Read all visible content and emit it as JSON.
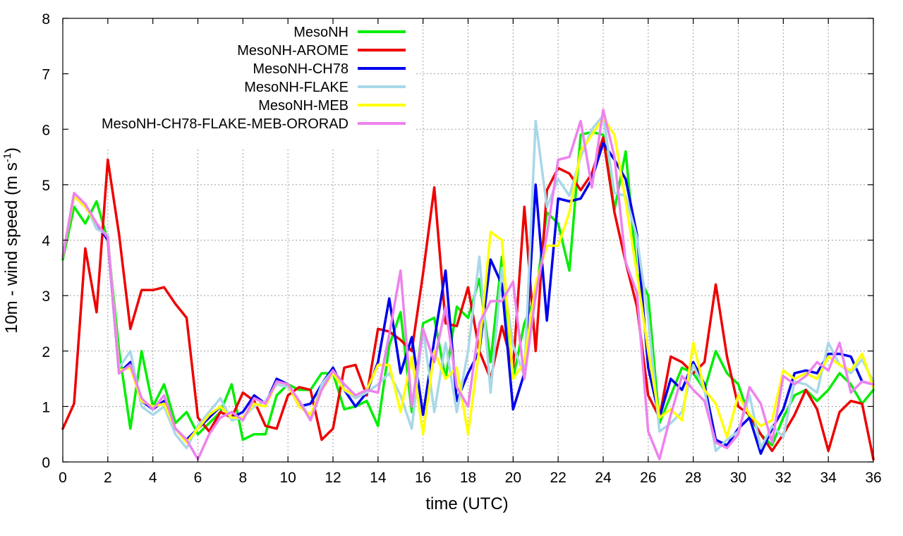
{
  "chart_data": {
    "type": "line",
    "title": "",
    "xlabel": "time (UTC)",
    "ylabel": "10m - wind speed  (m s-1)",
    "ylabel_parts": {
      "main": "10m - wind speed  (m s",
      "superscript": "-1",
      "suffix": ")"
    },
    "xlim": [
      0,
      36
    ],
    "ylim": [
      0,
      8
    ],
    "xticks": [
      0,
      2,
      4,
      6,
      8,
      10,
      12,
      14,
      16,
      18,
      20,
      22,
      24,
      26,
      28,
      30,
      32,
      34,
      36
    ],
    "yticks": [
      0,
      1,
      2,
      3,
      4,
      5,
      6,
      7,
      8
    ],
    "grid": true,
    "legend_position": "top-left",
    "x": [
      0,
      0.5,
      1,
      1.5,
      2,
      2.5,
      3,
      3.5,
      4,
      4.5,
      5,
      5.5,
      6,
      6.5,
      7,
      7.5,
      8,
      8.5,
      9,
      9.5,
      10,
      10.5,
      11,
      11.5,
      12,
      12.5,
      13,
      13.5,
      14,
      14.5,
      15,
      15.5,
      16,
      16.5,
      17,
      17.5,
      18,
      18.5,
      19,
      19.5,
      20,
      20.5,
      21,
      21.5,
      22,
      22.5,
      23,
      23.5,
      24,
      24.5,
      25,
      25.5,
      26,
      26.5,
      27,
      27.5,
      28,
      28.5,
      29,
      29.5,
      30,
      30.5,
      31,
      31.5,
      32,
      32.5,
      33,
      33.5,
      34,
      34.5,
      35,
      35.5,
      36
    ],
    "series": [
      {
        "name": "MesoNH",
        "color": "#00ee00",
        "values": [
          3.65,
          4.6,
          4.3,
          4.7,
          4.0,
          2.0,
          0.6,
          2.0,
          1.0,
          1.4,
          0.7,
          0.9,
          0.5,
          0.7,
          0.9,
          1.4,
          0.4,
          0.5,
          0.5,
          1.2,
          1.4,
          1.3,
          1.3,
          1.6,
          1.6,
          0.95,
          1.0,
          1.1,
          0.65,
          2.1,
          2.7,
          0.9,
          2.5,
          2.6,
          1.5,
          2.8,
          2.6,
          3.3,
          1.8,
          3.7,
          1.5,
          2.5,
          3.0,
          4.5,
          4.3,
          3.45,
          5.9,
          5.95,
          5.9,
          4.55,
          5.6,
          3.4,
          3.0,
          0.7,
          1.2,
          1.7,
          1.6,
          1.3,
          2.0,
          1.6,
          1.4,
          0.8,
          0.5,
          0.3,
          0.8,
          1.2,
          1.3,
          1.1,
          1.3,
          1.6,
          1.4,
          1.05,
          1.3
        ]
      },
      {
        "name": "MesoNH-AROME",
        "color": "#ee0000",
        "values": [
          0.6,
          1.05,
          3.85,
          2.7,
          5.45,
          4.1,
          2.4,
          3.1,
          3.1,
          3.15,
          2.85,
          2.6,
          0.8,
          0.55,
          0.9,
          0.8,
          1.25,
          1.1,
          0.65,
          0.6,
          1.2,
          1.35,
          1.3,
          0.4,
          0.6,
          1.7,
          1.75,
          1.2,
          2.4,
          2.35,
          2.2,
          2.0,
          3.4,
          4.95,
          2.5,
          2.45,
          3.15,
          2.0,
          1.5,
          2.45,
          1.7,
          4.6,
          2.0,
          4.9,
          5.3,
          5.2,
          4.9,
          5.2,
          5.85,
          4.5,
          3.6,
          2.8,
          1.2,
          0.8,
          1.9,
          1.8,
          1.6,
          1.8,
          3.2,
          1.9,
          1.0,
          0.85,
          0.5,
          0.2,
          0.5,
          0.85,
          1.3,
          0.95,
          0.2,
          0.9,
          1.1,
          1.05,
          0.05
        ]
      },
      {
        "name": "MesoNH-CH78",
        "color": "#0000ee",
        "values": [
          3.7,
          4.8,
          4.6,
          4.3,
          4.0,
          1.6,
          1.8,
          1.1,
          0.95,
          1.1,
          0.6,
          0.4,
          0.6,
          0.8,
          1.0,
          0.8,
          0.9,
          1.2,
          1.05,
          1.5,
          1.4,
          1.0,
          1.05,
          1.4,
          1.7,
          1.3,
          1.0,
          1.25,
          1.8,
          2.95,
          1.6,
          2.25,
          0.85,
          2.2,
          3.45,
          1.1,
          1.6,
          2.0,
          3.65,
          3.2,
          0.95,
          1.6,
          5.0,
          2.55,
          4.75,
          4.7,
          4.75,
          5.1,
          5.75,
          5.45,
          5.1,
          4.1,
          1.7,
          0.8,
          1.5,
          1.3,
          1.8,
          1.4,
          0.4,
          0.3,
          0.6,
          0.8,
          0.15,
          0.6,
          0.95,
          1.6,
          1.65,
          1.6,
          1.95,
          1.95,
          1.9,
          1.45,
          1.4
        ]
      },
      {
        "name": "MesoNH-FLAKE",
        "color": "#a8d8e8",
        "values": [
          3.7,
          4.8,
          4.65,
          4.2,
          4.1,
          1.7,
          2.0,
          1.0,
          0.85,
          1.0,
          0.5,
          0.25,
          0.65,
          0.9,
          1.15,
          0.75,
          0.8,
          1.0,
          1.1,
          1.4,
          1.35,
          1.1,
          0.8,
          1.4,
          1.65,
          1.3,
          1.15,
          1.25,
          1.4,
          1.6,
          1.2,
          0.6,
          2.4,
          0.9,
          2.15,
          0.9,
          2.0,
          3.7,
          1.25,
          3.5,
          2.1,
          1.55,
          6.15,
          4.6,
          5.1,
          4.8,
          5.5,
          6.0,
          6.25,
          4.85,
          4.8,
          4.05,
          2.6,
          0.55,
          0.7,
          0.9,
          1.75,
          1.3,
          0.2,
          0.4,
          0.55,
          1.2,
          0.25,
          0.65,
          0.45,
          1.45,
          1.4,
          1.25,
          2.15,
          1.75,
          1.6,
          1.85,
          1.45
        ]
      },
      {
        "name": "MesoNH-MEB",
        "color": "#ffff00",
        "values": [
          3.7,
          4.8,
          4.6,
          4.3,
          4.05,
          1.65,
          1.7,
          1.1,
          1.0,
          1.05,
          0.6,
          0.35,
          0.6,
          0.85,
          1.0,
          0.8,
          0.8,
          1.05,
          1.0,
          1.45,
          1.4,
          1.0,
          0.85,
          1.3,
          1.6,
          1.3,
          1.2,
          1.3,
          1.75,
          1.75,
          0.9,
          1.9,
          0.5,
          2.0,
          1.5,
          1.7,
          0.5,
          2.05,
          4.15,
          4.0,
          1.5,
          1.8,
          3.2,
          3.9,
          3.9,
          4.5,
          5.6,
          5.9,
          6.2,
          5.9,
          4.7,
          3.4,
          2.0,
          0.8,
          0.95,
          0.75,
          2.15,
          1.3,
          1.05,
          0.45,
          1.2,
          0.85,
          0.65,
          0.75,
          1.65,
          1.5,
          1.6,
          1.5,
          1.9,
          1.75,
          1.65,
          1.95,
          1.35
        ]
      },
      {
        "name": "MesoNH-CH78-FLAKE-MEB-ORORAD",
        "color": "#ee82ee",
        "values": [
          3.7,
          4.85,
          4.65,
          4.3,
          4.05,
          1.6,
          1.75,
          1.15,
          0.95,
          1.2,
          0.6,
          0.4,
          0.05,
          0.5,
          0.8,
          0.9,
          0.75,
          1.15,
          1.05,
          1.45,
          1.4,
          1.1,
          0.75,
          1.3,
          1.65,
          1.4,
          1.2,
          1.3,
          1.25,
          2.3,
          3.45,
          1.0,
          2.4,
          1.8,
          2.8,
          1.35,
          1.0,
          2.5,
          2.9,
          2.9,
          3.25,
          1.5,
          3.0,
          4.1,
          5.45,
          5.5,
          6.15,
          4.95,
          6.35,
          5.5,
          3.6,
          3.05,
          0.55,
          0.05,
          0.85,
          1.55,
          1.3,
          1.1,
          0.35,
          0.25,
          0.5,
          1.35,
          1.05,
          0.35,
          1.55,
          1.4,
          1.55,
          1.8,
          1.65,
          2.15,
          1.25,
          1.45,
          1.4
        ]
      }
    ]
  }
}
